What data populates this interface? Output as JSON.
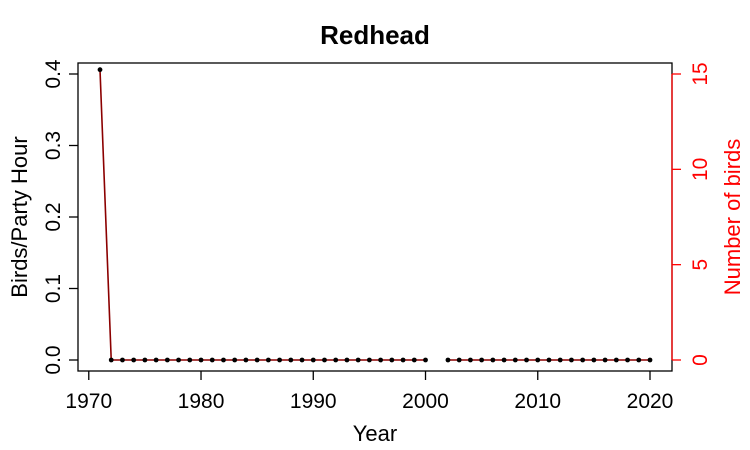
{
  "chart_data": {
    "type": "line",
    "title": "Redhead",
    "xlabel": "Year",
    "ylabel": "Birds/Party Hour",
    "y2label": "Number of birds",
    "xlim": [
      1970,
      2020
    ],
    "ylim": [
      0,
      0.4
    ],
    "y2lim": [
      0,
      15
    ],
    "xticks": [
      1970,
      1980,
      1990,
      2000,
      2010,
      2020
    ],
    "yticks": [
      "0.0",
      "0.1",
      "0.2",
      "0.3",
      "0.4"
    ],
    "y2ticks": [
      "0",
      "5",
      "10",
      "15"
    ],
    "grid": false,
    "colors": {
      "line": "#8b0000",
      "points": "#000000",
      "right_axis": "#ff0000"
    },
    "series": [
      {
        "x": [
          1971,
          1972,
          1973,
          1974,
          1975,
          1976,
          1977,
          1978,
          1979,
          1980,
          1981,
          1982,
          1983,
          1984,
          1985,
          1986,
          1987,
          1988,
          1989,
          1990,
          1991,
          1992,
          1993,
          1994,
          1995,
          1996,
          1997,
          1998,
          1999,
          2000,
          2002,
          2003,
          2004,
          2005,
          2006,
          2007,
          2008,
          2009,
          2010,
          2011,
          2012,
          2013,
          2014,
          2015,
          2016,
          2017,
          2018,
          2019,
          2020
        ],
        "y": [
          0.406,
          0,
          0,
          0,
          0,
          0,
          0,
          0,
          0,
          0,
          0,
          0,
          0,
          0,
          0,
          0,
          0,
          0,
          0,
          0,
          0,
          0,
          0,
          0,
          0,
          0,
          0,
          0,
          0,
          0,
          0,
          0,
          0,
          0,
          0,
          0,
          0,
          0,
          0,
          0,
          0,
          0,
          0,
          0,
          0,
          0,
          0,
          0,
          0
        ]
      }
    ]
  }
}
